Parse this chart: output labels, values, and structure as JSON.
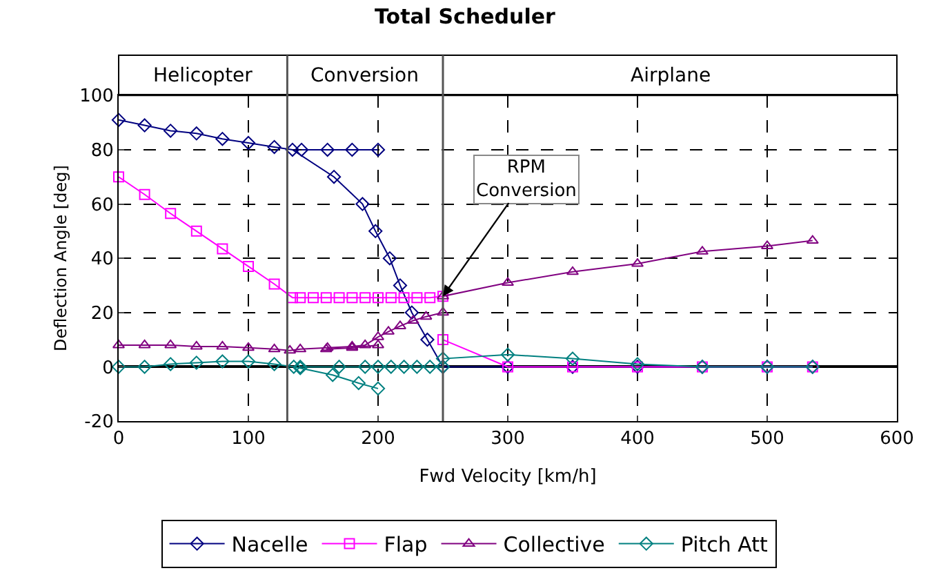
{
  "chart_data": {
    "type": "line",
    "title": "Total Scheduler",
    "xlabel": "Fwd Velocity [km/h]",
    "ylabel": "Deflection Angle [deg]",
    "xlim": [
      0,
      600
    ],
    "xticks": [
      0,
      100,
      200,
      300,
      400,
      500,
      600
    ],
    "ylim": [
      -20,
      100
    ],
    "yticks": [
      -20,
      0,
      20,
      40,
      60,
      80,
      100
    ],
    "grid": true,
    "legend": "bottom",
    "ref_lines": [
      {
        "axis": "x",
        "value": 130,
        "color": "#555555"
      },
      {
        "axis": "x",
        "value": 250,
        "color": "#555555"
      }
    ],
    "annotations": [
      "Helicopter",
      "Conversion",
      "Airplane",
      {
        "text": "RPM\nConversion",
        "x": 250,
        "y": 26
      }
    ],
    "series": [
      {
        "name": "Nacelle",
        "color": "#000080",
        "marker": "diamond",
        "x": [
          0,
          20,
          40,
          60,
          80,
          100,
          120,
          134,
          166,
          188,
          198,
          209,
          217,
          226,
          238,
          250,
          300,
          350,
          400,
          450,
          500,
          535,
          null,
          141,
          161,
          180,
          200
        ],
        "values": [
          91,
          89,
          87,
          86,
          84,
          82.5,
          81,
          80,
          70,
          60,
          50,
          40,
          30,
          20,
          10,
          0,
          0,
          0,
          0,
          0,
          0,
          0,
          null,
          80,
          80,
          80,
          80
        ]
      },
      {
        "name": "Flap",
        "color": "#ff00ff",
        "marker": "square",
        "x": [
          0,
          20,
          40,
          60,
          80,
          100,
          120,
          134,
          140,
          150,
          160,
          170,
          180,
          190,
          200,
          210,
          220,
          230,
          240,
          250,
          250,
          300,
          350,
          400,
          450,
          500,
          535
        ],
        "values": [
          70,
          63.5,
          56.5,
          50,
          43.5,
          37,
          30.5,
          25.5,
          25.5,
          25.5,
          25.5,
          25.5,
          25.5,
          25.5,
          25.5,
          25.5,
          25.5,
          25.5,
          25.5,
          26,
          10,
          0,
          0,
          0,
          0,
          0,
          0
        ]
      },
      {
        "name": "Collective",
        "color": "#800080",
        "marker": "triangle",
        "x": [
          0,
          20,
          40,
          60,
          80,
          100,
          120,
          132,
          140,
          161,
          180,
          190,
          200,
          208,
          217,
          227,
          237,
          250,
          250,
          300,
          350,
          400,
          450,
          500,
          535,
          null,
          160,
          180,
          200
        ],
        "values": [
          8,
          8,
          8,
          7.5,
          7.5,
          7,
          6.5,
          6,
          6.5,
          7,
          7.5,
          8,
          11,
          13,
          15,
          17,
          18.5,
          20,
          26,
          31,
          35,
          38,
          42.5,
          44.5,
          46.5,
          null,
          6.5,
          7,
          8
        ]
      },
      {
        "name": "Pitch Att",
        "color": "#008080",
        "marker": "diamond",
        "x": [
          0,
          20,
          40,
          60,
          80,
          100,
          120,
          135,
          140,
          165,
          185,
          200,
          null,
          140,
          170,
          190,
          200,
          210,
          220,
          230,
          240,
          250,
          250,
          300,
          350,
          400,
          450,
          500,
          535
        ],
        "values": [
          0,
          0,
          1,
          1.5,
          2,
          2,
          1,
          0,
          -0.5,
          -3,
          -6,
          -8,
          null,
          0,
          0,
          0,
          0,
          0,
          0,
          0,
          0,
          0,
          3,
          4.5,
          3,
          1,
          0,
          0,
          0
        ]
      }
    ]
  }
}
